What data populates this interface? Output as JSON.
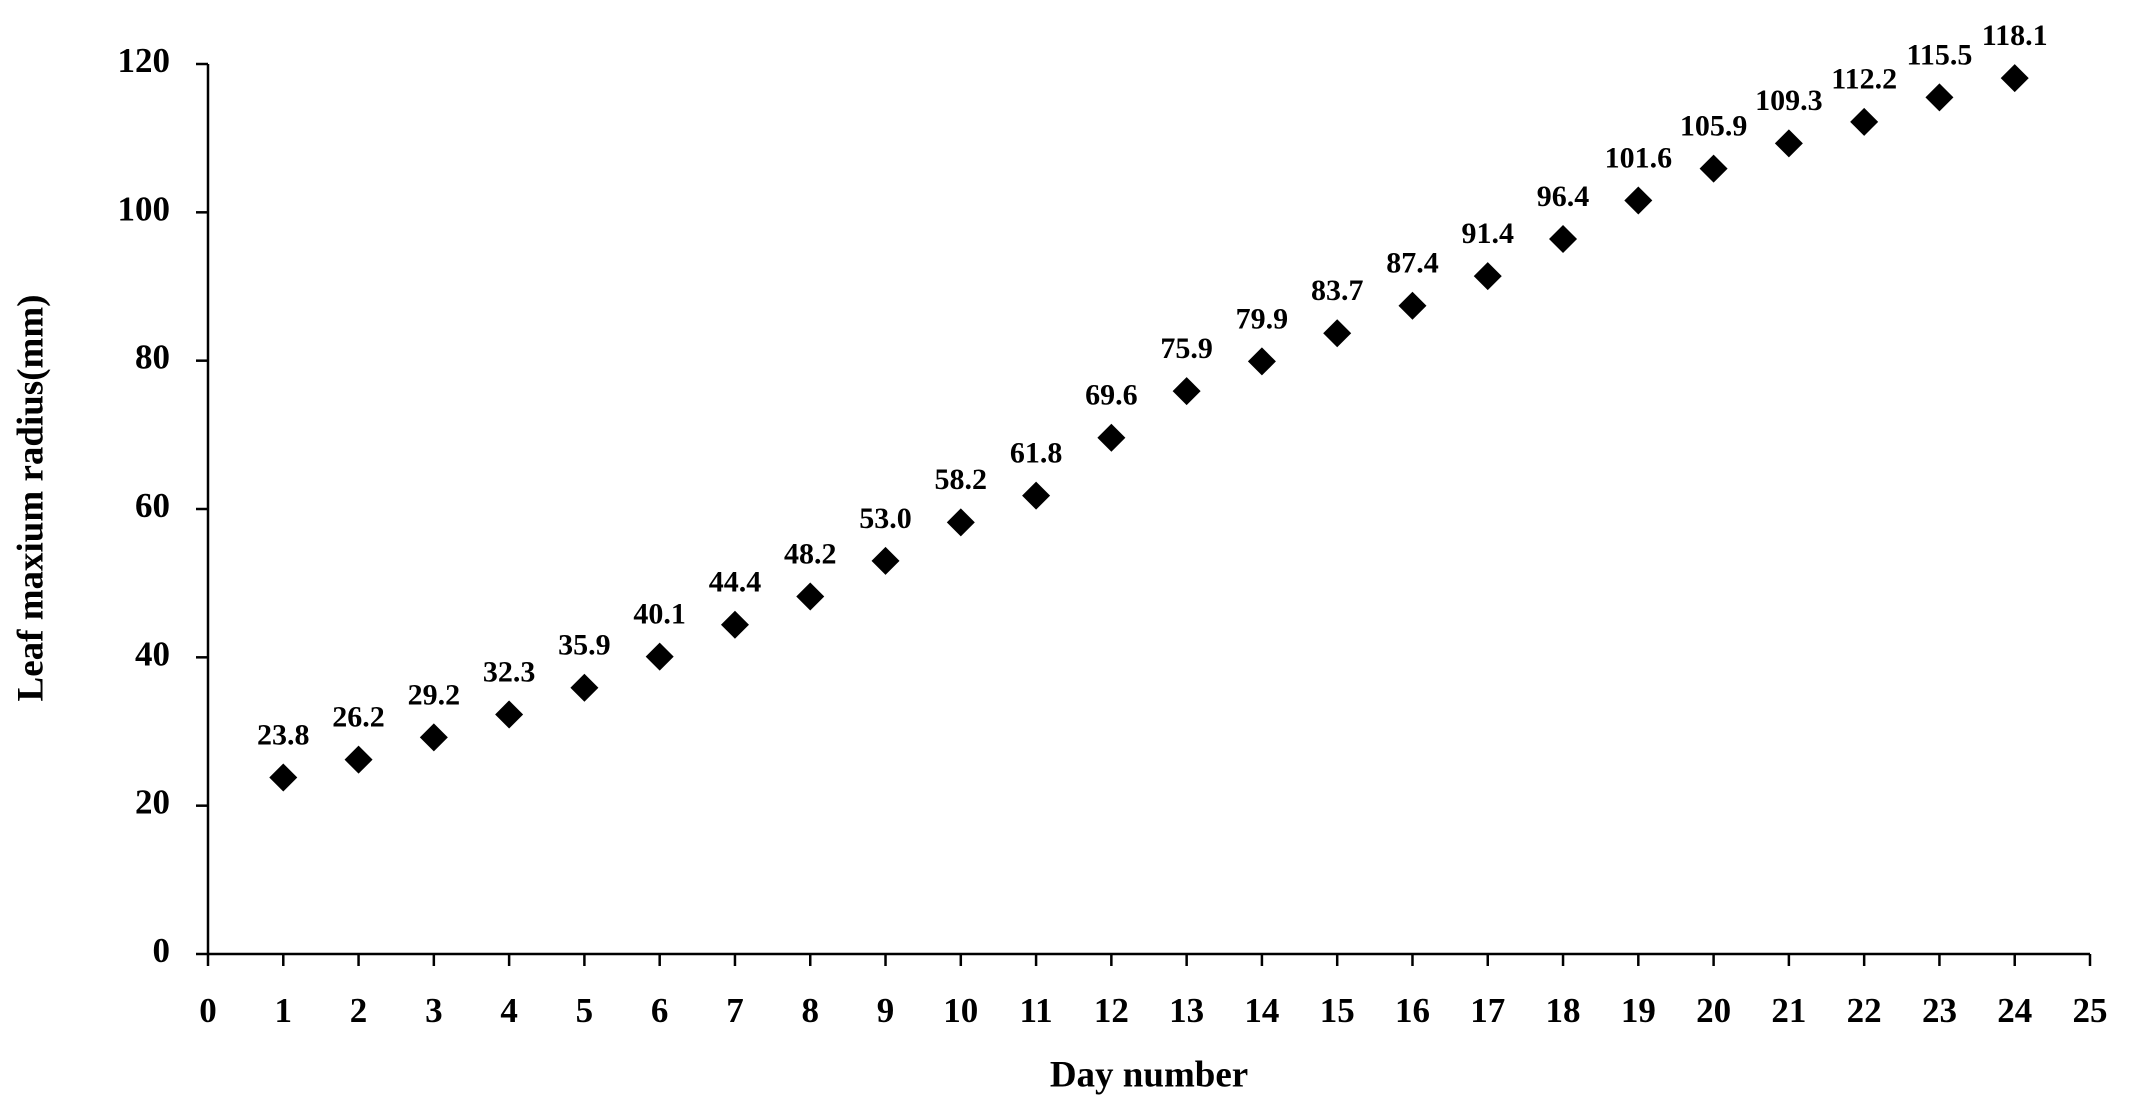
{
  "chart_data": {
    "type": "scatter",
    "x_label": "Day number",
    "y_label": "Leaf maxium  radius(mm)",
    "x": [
      1,
      2,
      3,
      4,
      5,
      6,
      7,
      8,
      9,
      10,
      11,
      12,
      13,
      14,
      15,
      16,
      17,
      18,
      19,
      20,
      21,
      22,
      23,
      24
    ],
    "values": [
      23.8,
      26.2,
      29.2,
      32.3,
      35.9,
      40.1,
      44.4,
      48.2,
      53,
      58.2,
      61.8,
      69.6,
      75.9,
      79.9,
      83.7,
      87.4,
      91.4,
      96.4,
      101.6,
      105.9,
      109.3,
      112.2,
      115.5,
      118.1
    ],
    "value_labels": [
      "23.8",
      "26.2",
      "29.2",
      "32.3",
      "35.9",
      "40.1",
      "44.4",
      "48.2",
      "53.0",
      "58.2",
      "61.8",
      "69.6",
      "75.9",
      "79.9",
      "83.7",
      "87.4",
      "91.4",
      "96.4",
      "101.6",
      "105.9",
      "109.3",
      "112.2",
      "115.5",
      "118.1"
    ],
    "color": "#000000",
    "marker": "diamond",
    "xlim": [
      0,
      25
    ],
    "xticks": [
      0,
      1,
      2,
      3,
      4,
      5,
      6,
      7,
      8,
      9,
      10,
      11,
      12,
      13,
      14,
      15,
      16,
      17,
      18,
      19,
      20,
      21,
      22,
      23,
      24,
      25
    ],
    "ylim": [
      0,
      120
    ],
    "yticks": [
      0,
      20,
      40,
      60,
      80,
      100,
      120
    ],
    "grid": false
  }
}
